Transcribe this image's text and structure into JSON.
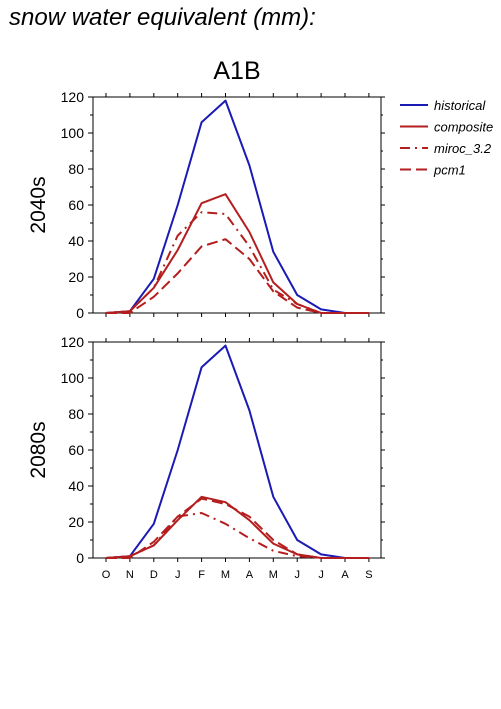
{
  "page_title": "snow water equivalent (mm):",
  "chart_data": {
    "type": "line",
    "title": "A1B",
    "months": [
      "O",
      "N",
      "D",
      "J",
      "F",
      "M",
      "A",
      "M",
      "J",
      "J",
      "A",
      "S"
    ],
    "ylim": [
      0,
      120
    ],
    "yticks": [
      0,
      20,
      40,
      60,
      80,
      100,
      120
    ],
    "legend_position": "right",
    "series_styles": [
      {
        "key": "historical",
        "label": "historical",
        "color": "#1a1ab4",
        "dash": ""
      },
      {
        "key": "composite",
        "label": "composite",
        "color": "#b41e1e",
        "dash": ""
      },
      {
        "key": "miroc_3.2",
        "label": "miroc_3.2",
        "color": "#b41e1e",
        "dash": "10,5,2,5"
      },
      {
        "key": "pcm1",
        "label": "pcm1",
        "color": "#b41e1e",
        "dash": "11,5"
      }
    ],
    "panels": [
      {
        "ylabel": "2040s",
        "series": [
          {
            "name": "historical",
            "values": [
              0,
              1,
              19,
              60,
              106,
              118,
              82,
              34,
              10,
              2,
              0,
              0
            ]
          },
          {
            "name": "composite",
            "values": [
              0,
              1,
              14,
              35,
              61,
              66,
              45,
              17,
              5,
              0,
              0,
              0
            ]
          },
          {
            "name": "miroc_3.2",
            "values": [
              0,
              1,
              14,
              43,
              56,
              55,
              37,
              13,
              5,
              0,
              0,
              0
            ]
          },
          {
            "name": "pcm1",
            "values": [
              0,
              0,
              9,
              22,
              37,
              41,
              30,
              12,
              3,
              0,
              0,
              0
            ]
          }
        ]
      },
      {
        "ylabel": "2080s",
        "series": [
          {
            "name": "historical",
            "values": [
              0,
              1,
              19,
              60,
              106,
              118,
              82,
              34,
              10,
              2,
              0,
              0
            ]
          },
          {
            "name": "composite",
            "values": [
              0,
              1,
              7,
              21,
              34,
              31,
              21,
              8,
              2,
              0,
              0,
              0
            ]
          },
          {
            "name": "miroc_3.2",
            "values": [
              0,
              1,
              7,
              23,
              25,
              19,
              11,
              4,
              1,
              0,
              0,
              0
            ]
          },
          {
            "name": "pcm1",
            "values": [
              0,
              0,
              9,
              23,
              33,
              30,
              23,
              10,
              2,
              0,
              0,
              0
            ]
          }
        ]
      }
    ]
  }
}
